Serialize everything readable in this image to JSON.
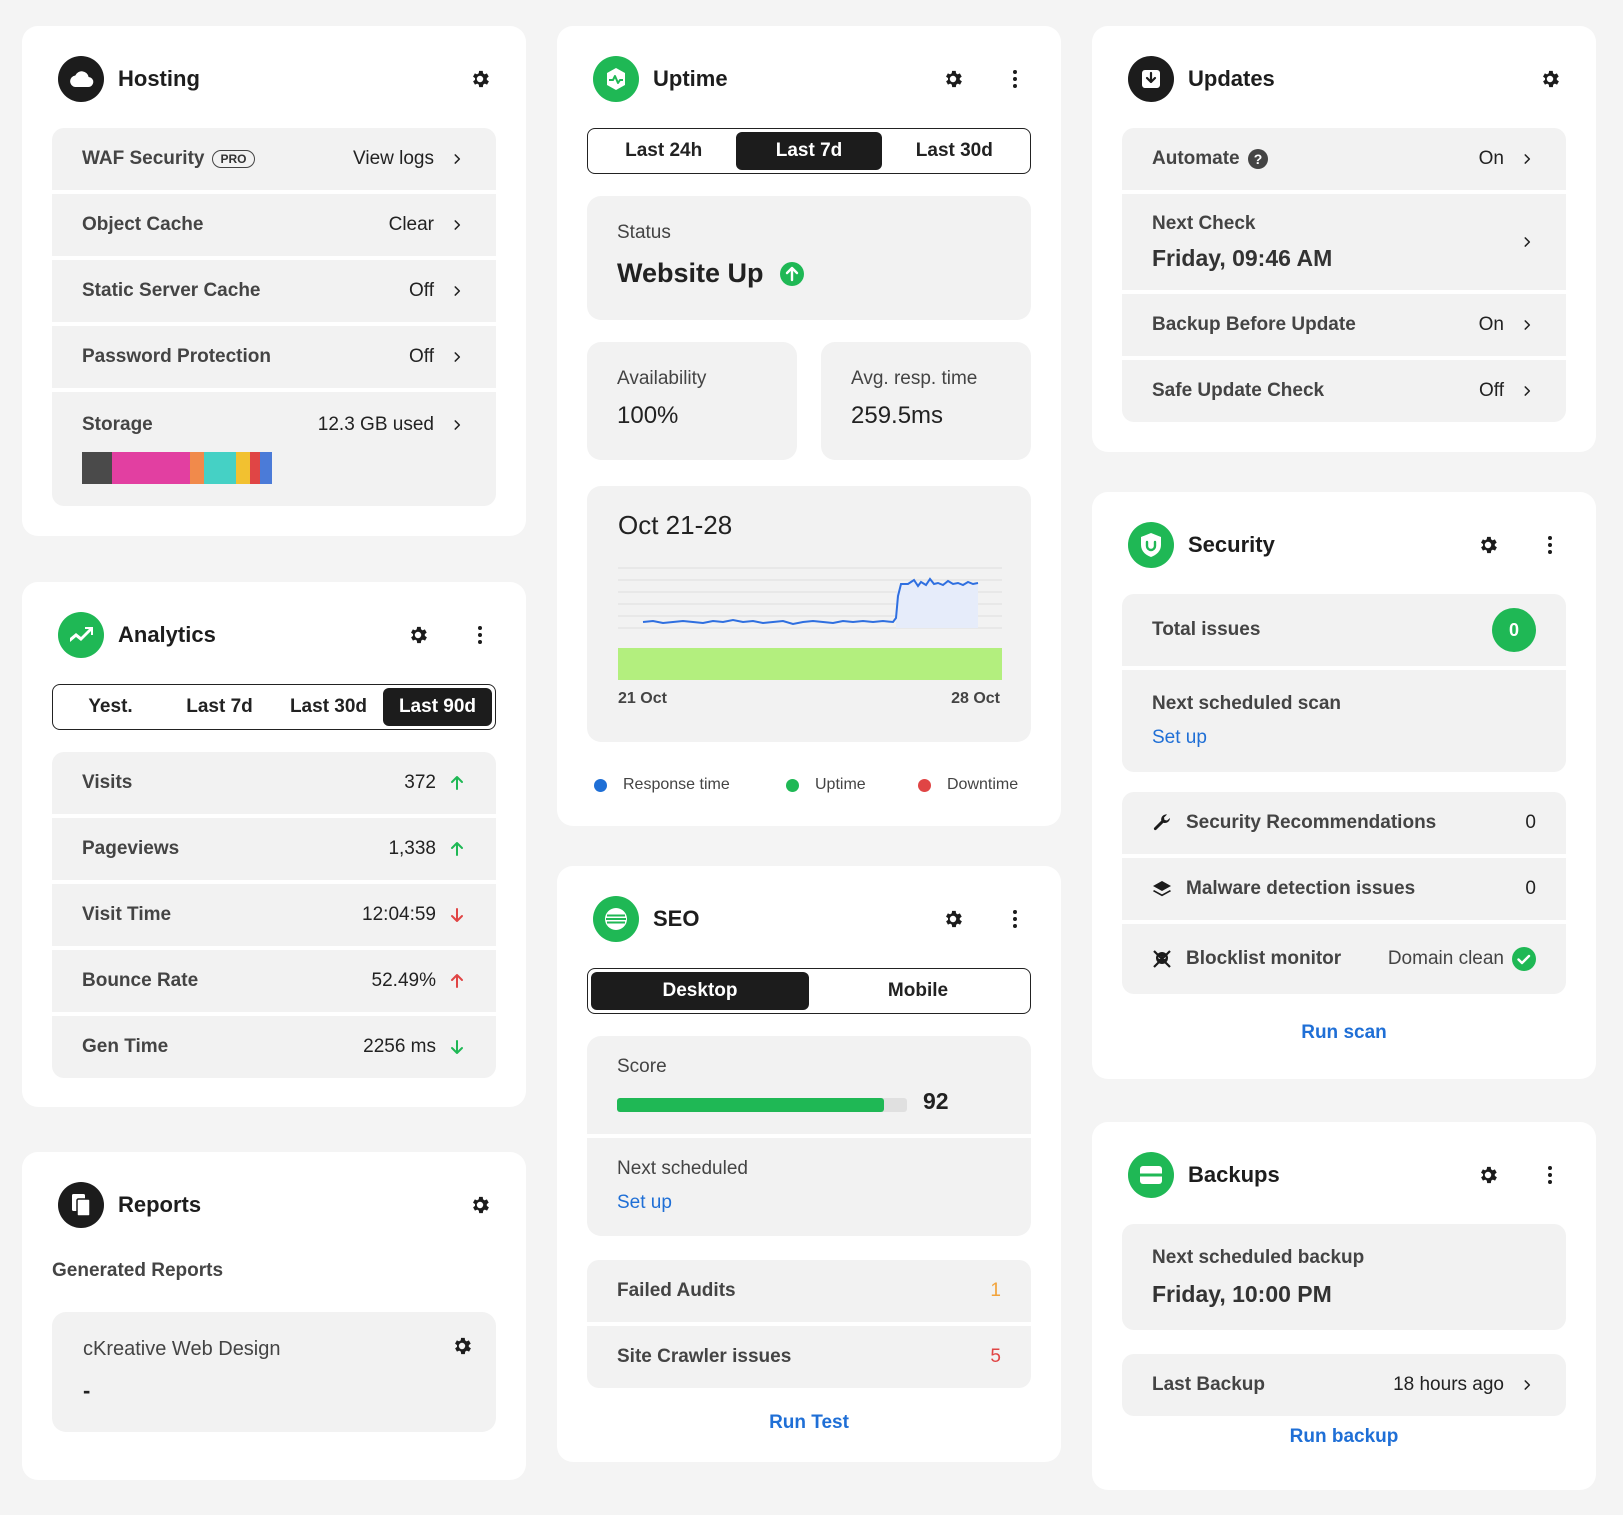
{
  "hosting": {
    "title": "Hosting",
    "rows": [
      {
        "label": "WAF Security",
        "badge": "PRO",
        "value": "View logs"
      },
      {
        "label": "Object Cache",
        "value": "Clear"
      },
      {
        "label": "Static Server Cache",
        "value": "Off"
      },
      {
        "label": "Password Protection",
        "value": "Off"
      },
      {
        "label": "Storage",
        "value": "12.3 GB used"
      }
    ],
    "storage_colors": [
      "#4a4a4a",
      "#e23fa1",
      "#f18a4b",
      "#45d1c5",
      "#f2c130",
      "#e04545",
      "#4b7bd8"
    ]
  },
  "analytics": {
    "title": "Analytics",
    "tabs": [
      "Yest.",
      "Last 7d",
      "Last 30d",
      "Last 90d"
    ],
    "active_tab": "Last 90d",
    "rows": [
      {
        "label": "Visits",
        "value": "372",
        "trend": "up",
        "color": "#1fb855"
      },
      {
        "label": "Pageviews",
        "value": "1,338",
        "trend": "up",
        "color": "#1fb855"
      },
      {
        "label": "Visit Time",
        "value": "12:04:59",
        "trend": "down",
        "color": "#e04545"
      },
      {
        "label": "Bounce Rate",
        "value": "52.49%",
        "trend": "up",
        "color": "#e04545"
      },
      {
        "label": "Gen Time",
        "value": "2256 ms",
        "trend": "down",
        "color": "#1fb855"
      }
    ]
  },
  "reports": {
    "title": "Reports",
    "section": "Generated Reports",
    "item_name": "cKreative Web Design",
    "item_value": "-"
  },
  "uptime": {
    "title": "Uptime",
    "tabs": [
      "Last 24h",
      "Last 7d",
      "Last 30d"
    ],
    "active_tab": "Last 7d",
    "status_label": "Status",
    "status_value": "Website Up",
    "availability_label": "Availability",
    "availability_value": "100%",
    "resp_label": "Avg. resp. time",
    "resp_value": "259.5ms",
    "chart_title": "Oct 21-28",
    "x_start": "21 Oct",
    "x_end": "28 Oct",
    "legend": [
      {
        "name": "Response time",
        "color": "#1f6fd6"
      },
      {
        "name": "Uptime",
        "color": "#1fb855"
      },
      {
        "name": "Downtime",
        "color": "#e04545"
      }
    ]
  },
  "seo": {
    "title": "SEO",
    "tabs": [
      "Desktop",
      "Mobile"
    ],
    "active_tab": "Desktop",
    "score_label": "Score",
    "score_value": "92",
    "score_fraction": 0.92,
    "next_label": "Next scheduled",
    "next_link": "Set up",
    "rows": [
      {
        "label": "Failed Audits",
        "value": "1",
        "color": "#f2a33a"
      },
      {
        "label": "Site Crawler issues",
        "value": "5",
        "color": "#e04545"
      }
    ],
    "action": "Run Test"
  },
  "updates": {
    "title": "Updates",
    "automate_label": "Automate",
    "automate_value": "On",
    "next_check_label": "Next Check",
    "next_check_value": "Friday, 09:46 AM",
    "backup_label": "Backup Before Update",
    "backup_value": "On",
    "safe_label": "Safe Update Check",
    "safe_value": "Off"
  },
  "security": {
    "title": "Security",
    "total_label": "Total issues",
    "total_value": "0",
    "next_label": "Next scheduled scan",
    "next_link": "Set up",
    "rec_label": "Security Recommendations",
    "rec_value": "0",
    "malware_label": "Malware detection issues",
    "malware_value": "0",
    "blocklist_label": "Blocklist monitor",
    "blocklist_value": "Domain clean",
    "action": "Run scan"
  },
  "backups": {
    "title": "Backups",
    "next_label": "Next scheduled backup",
    "next_value": "Friday, 10:00 PM",
    "last_label": "Last Backup",
    "last_value": "18 hours ago",
    "action": "Run backup"
  }
}
